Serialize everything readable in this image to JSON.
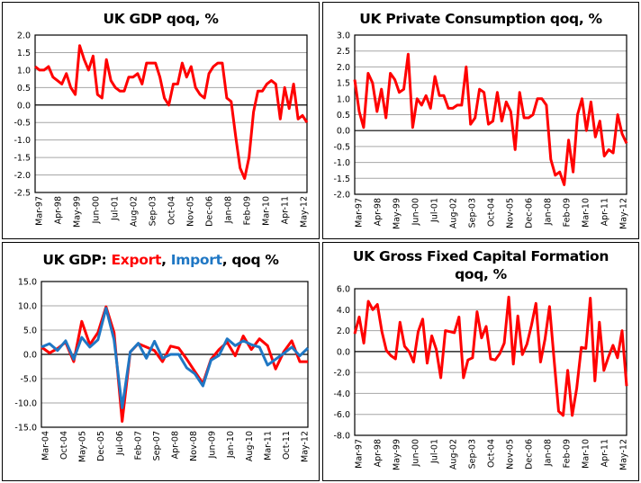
{
  "colors": {
    "export": "#ff0000",
    "import": "#1f77c4",
    "line": "#ff0000",
    "grid": "#a6a6a6",
    "axis": "#000000"
  },
  "chart_data": [
    {
      "id": "gdp",
      "type": "line",
      "title": "UK GDP qoq, %",
      "xlabel": "",
      "ylabel": "",
      "ylim": [
        -2.5,
        2.0
      ],
      "ystep": 0.5,
      "ydecimals": 1,
      "grid": true,
      "legend": "none",
      "tick_labels": [
        "Mar-97",
        "Apr-98",
        "May-99",
        "Jun-00",
        "Jul-01",
        "Aug-02",
        "Sep-03",
        "Oct-04",
        "Nov-05",
        "Dec-06",
        "Jan-08",
        "Feb-09",
        "Mar-10",
        "Apr-11",
        "May-12"
      ],
      "series": [
        {
          "name": "GDP qoq",
          "color": "#ff0000",
          "values": [
            1.1,
            1.0,
            1.0,
            1.1,
            0.8,
            0.7,
            0.6,
            0.9,
            0.5,
            0.3,
            1.7,
            1.3,
            1.0,
            1.4,
            0.3,
            0.2,
            1.3,
            0.7,
            0.5,
            0.4,
            0.4,
            0.8,
            0.8,
            0.9,
            0.6,
            1.2,
            1.2,
            1.2,
            0.8,
            0.2,
            0.0,
            0.6,
            0.6,
            1.2,
            0.8,
            1.1,
            0.5,
            0.3,
            0.2,
            0.9,
            1.1,
            1.2,
            1.2,
            0.2,
            0.1,
            -0.9,
            -1.8,
            -2.1,
            -1.5,
            -0.2,
            0.4,
            0.4,
            0.6,
            0.7,
            0.6,
            -0.4,
            0.5,
            -0.1,
            0.6,
            -0.4,
            -0.3,
            -0.5
          ]
        }
      ]
    },
    {
      "id": "consumption",
      "type": "line",
      "title": "UK Private Consumption qoq, %",
      "xlabel": "",
      "ylabel": "",
      "ylim": [
        -2.0,
        3.0
      ],
      "ystep": 0.5,
      "ydecimals": 1,
      "grid": true,
      "legend": "none",
      "tick_labels": [
        "Mar-97",
        "Apr-98",
        "May-99",
        "Jun-00",
        "Jul-01",
        "Aug-02",
        "Sep-03",
        "Oct-04",
        "Nov-05",
        "Dec-06",
        "Jan-08",
        "Feb-09",
        "Mar-10",
        "Apr-11",
        "May-12"
      ],
      "series": [
        {
          "name": "Private Consumption qoq",
          "color": "#ff0000",
          "values": [
            1.6,
            0.6,
            0.1,
            1.8,
            1.5,
            0.6,
            1.3,
            0.4,
            1.8,
            1.6,
            1.2,
            1.3,
            2.4,
            0.1,
            1.0,
            0.8,
            1.1,
            0.7,
            1.7,
            1.1,
            1.1,
            0.7,
            0.7,
            0.8,
            0.8,
            2.0,
            0.2,
            0.4,
            1.3,
            1.2,
            0.2,
            0.3,
            1.2,
            0.3,
            0.9,
            0.6,
            -0.6,
            1.2,
            0.4,
            0.4,
            0.5,
            1.0,
            1.0,
            0.8,
            -0.9,
            -1.4,
            -1.3,
            -1.7,
            -0.3,
            -1.3,
            0.5,
            1.0,
            0.0,
            0.9,
            -0.2,
            0.3,
            -0.8,
            -0.6,
            -0.7,
            0.5,
            -0.1,
            -0.4
          ]
        }
      ]
    },
    {
      "id": "trade",
      "type": "line",
      "title": "UK GDP: Export, Import, qoq %",
      "title_parts": [
        {
          "text": "UK GDP: ",
          "color": "#000000"
        },
        {
          "text": "Export",
          "color": "#ff0000"
        },
        {
          "text": ", ",
          "color": "#000000"
        },
        {
          "text": "Import",
          "color": "#1f77c4"
        },
        {
          "text": ", qoq %",
          "color": "#000000"
        }
      ],
      "xlabel": "",
      "ylabel": "",
      "ylim": [
        -15.0,
        15.0
      ],
      "ystep": 5.0,
      "ydecimals": 1,
      "grid": true,
      "legend": "title",
      "tick_labels": [
        "Mar-04",
        "Oct-04",
        "May-05",
        "Dec-05",
        "Jul-06",
        "Feb-07",
        "Sep-07",
        "Apr-08",
        "Nov-08",
        "Jun-09",
        "Jan-10",
        "Aug-10",
        "Mar-11",
        "Oct-11",
        "May-12"
      ],
      "series": [
        {
          "name": "Export",
          "color": "#ff0000",
          "values": [
            1.5,
            0.3,
            1.2,
            2.5,
            -1.5,
            6.8,
            2.0,
            4.5,
            9.8,
            4.5,
            -13.8,
            0.5,
            2.2,
            1.5,
            0.8,
            -1.5,
            1.7,
            1.3,
            -1.0,
            -3.5,
            -6.0,
            -1.0,
            1.0,
            2.5,
            -0.3,
            3.8,
            1.0,
            3.2,
            1.8,
            -3.0,
            0.5,
            2.8,
            -1.5,
            -1.5
          ]
        },
        {
          "name": "Import",
          "color": "#1f77c4",
          "values": [
            1.5,
            2.2,
            0.8,
            2.8,
            -1.0,
            3.5,
            1.5,
            3.0,
            9.5,
            3.0,
            -11.0,
            0.5,
            2.3,
            -0.8,
            2.7,
            -0.8,
            0.0,
            0.0,
            -2.8,
            -4.0,
            -6.5,
            -1.2,
            -0.2,
            3.2,
            1.8,
            2.8,
            2.0,
            1.5,
            -2.2,
            -1.0,
            0.2,
            1.5,
            -0.3,
            1.3
          ]
        }
      ]
    },
    {
      "id": "gfcf",
      "type": "line",
      "title": "UK Gross Fixed Capital Formation qoq, %",
      "title_lines": [
        "UK Gross Fixed Capital Formation",
        "qoq, %"
      ],
      "xlabel": "",
      "ylabel": "",
      "ylim": [
        -8.0,
        6.0
      ],
      "ystep": 2.0,
      "ydecimals": 1,
      "grid": true,
      "legend": "none",
      "tick_labels": [
        "Mar-97",
        "Apr-98",
        "May-99",
        "Jun-00",
        "Jul-01",
        "Aug-02",
        "Sep-03",
        "Oct-04",
        "Nov-05",
        "Dec-06",
        "Jan-08",
        "Feb-09",
        "Mar-10",
        "Apr-11",
        "May-12"
      ],
      "series": [
        {
          "name": "GFCF qoq",
          "color": "#ff0000",
          "values": [
            1.7,
            3.3,
            0.8,
            4.8,
            4.0,
            4.5,
            1.9,
            0.1,
            -0.4,
            -0.7,
            2.8,
            0.5,
            0.0,
            -1.0,
            1.9,
            3.1,
            -1.1,
            1.5,
            0.2,
            -2.5,
            2.0,
            1.9,
            1.8,
            3.3,
            -2.5,
            -0.8,
            -0.6,
            3.8,
            1.3,
            2.4,
            -0.7,
            -0.8,
            -0.2,
            0.8,
            5.2,
            -1.2,
            3.4,
            -0.3,
            0.7,
            2.5,
            4.6,
            -1.0,
            1.2,
            4.3,
            -0.8,
            -5.7,
            -6.1,
            -1.8,
            -6.1,
            -3.5,
            0.4,
            0.3,
            5.1,
            -2.8,
            2.8,
            -1.8,
            -0.5,
            0.6,
            -0.6,
            2.0,
            -3.3
          ]
        }
      ]
    }
  ]
}
